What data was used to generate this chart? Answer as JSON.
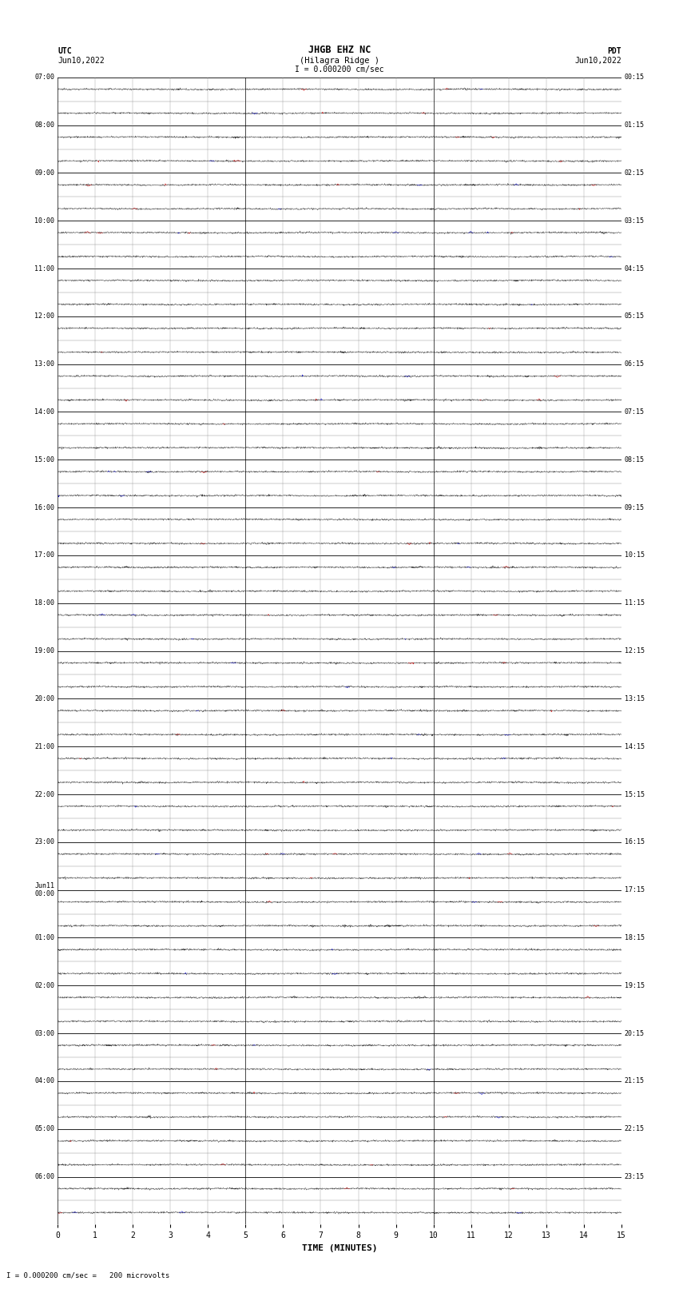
{
  "title_line1": "JHGB EHZ NC",
  "title_line2": "(Hilagra Ridge )",
  "scale_text": "I = 0.000200 cm/sec",
  "footer_text": "I = 0.000200 cm/sec =   200 microvolts",
  "left_label_top": "UTC",
  "left_label_date": "Jun10,2022",
  "right_label_top": "PDT",
  "right_label_date": "Jun10,2022",
  "xlabel": "TIME (MINUTES)",
  "x_ticks": [
    0,
    1,
    2,
    3,
    4,
    5,
    6,
    7,
    8,
    9,
    10,
    11,
    12,
    13,
    14,
    15
  ],
  "utc_labels_full": [
    "07:00",
    "08:00",
    "09:00",
    "10:00",
    "11:00",
    "12:00",
    "13:00",
    "14:00",
    "15:00",
    "16:00",
    "17:00",
    "18:00",
    "19:00",
    "20:00",
    "21:00",
    "22:00",
    "23:00",
    "Jun11\n00:00",
    "01:00",
    "02:00",
    "03:00",
    "04:00",
    "05:00",
    "06:00"
  ],
  "pdt_labels_full": [
    "00:15",
    "01:15",
    "02:15",
    "03:15",
    "04:15",
    "05:15",
    "06:15",
    "07:15",
    "08:15",
    "09:15",
    "10:15",
    "11:15",
    "12:15",
    "13:15",
    "14:15",
    "15:15",
    "16:15",
    "17:15",
    "18:15",
    "19:15",
    "20:15",
    "21:15",
    "22:15",
    "23:15"
  ],
  "n_hours": 24,
  "rows_per_hour": 2,
  "minutes_per_row": 15,
  "background_color": "#ffffff",
  "trace_color_black": "#000000",
  "trace_color_red": "#cc0000",
  "trace_color_blue": "#0000cc",
  "grid_color_thick": "#000000",
  "grid_color_thin": "#888888",
  "fig_width": 8.5,
  "fig_height": 16.13
}
